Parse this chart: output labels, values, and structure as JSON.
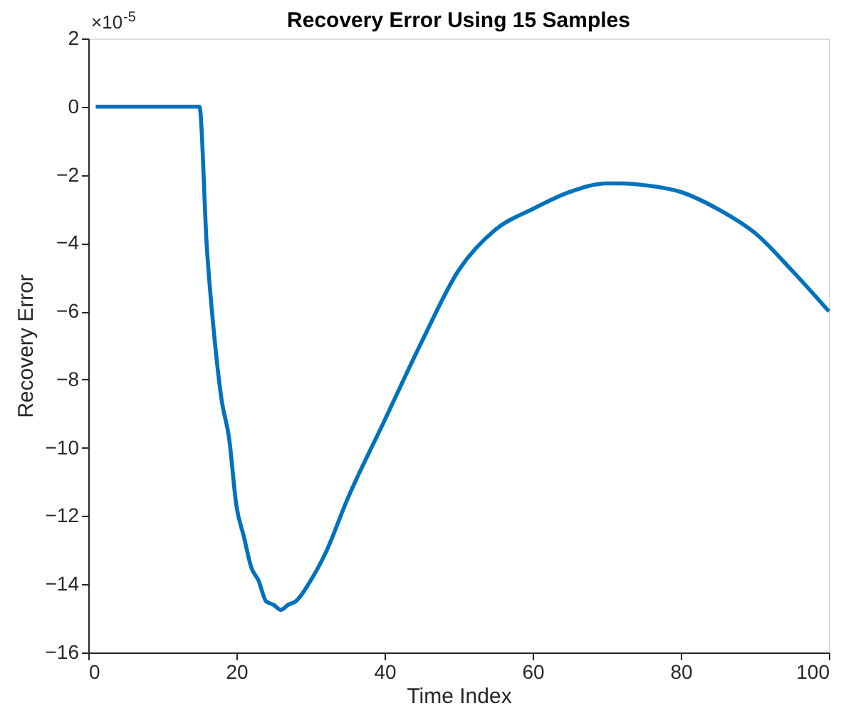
{
  "chart_data": {
    "type": "line",
    "title": "Recovery Error Using 15 Samples",
    "xlabel": "Time Index",
    "ylabel": "Recovery Error",
    "annotations": [
      "×10$^{-5}$"
    ],
    "series": [
      {
        "color": "#0072bd",
        "x": [
          1,
          5,
          10,
          15,
          16,
          17,
          18,
          19,
          20,
          21,
          22,
          23,
          24,
          25,
          26,
          27,
          28,
          30,
          32,
          35,
          40,
          45,
          50,
          55,
          60,
          65,
          70,
          72,
          75,
          80,
          85,
          90,
          95,
          100
        ],
        "values": [
          0,
          0,
          0,
          0,
          -4.1,
          -6.7,
          -8.6,
          -9.7,
          -11.7,
          -12.6,
          -13.5,
          -13.9,
          -14.5,
          -14.6,
          -14.75,
          -14.6,
          -14.5,
          -13.9,
          -13.1,
          -11.5,
          -9.2,
          -6.9,
          -4.8,
          -3.6,
          -3.0,
          -2.5,
          -2.25,
          -2.25,
          -2.3,
          -2.5,
          -3.0,
          -3.7,
          -4.8,
          -6.0
        ]
      }
    ],
    "xlim": [
      0,
      100
    ],
    "xticks": [
      0,
      20,
      40,
      60,
      80,
      100
    ],
    "ylim": [
      -16,
      2
    ],
    "yticks": [
      -16,
      -14,
      -12,
      -10,
      -8,
      -6,
      -4,
      -2,
      0,
      2
    ],
    "grid": false,
    "line_style": "solid",
    "marker": "none"
  }
}
